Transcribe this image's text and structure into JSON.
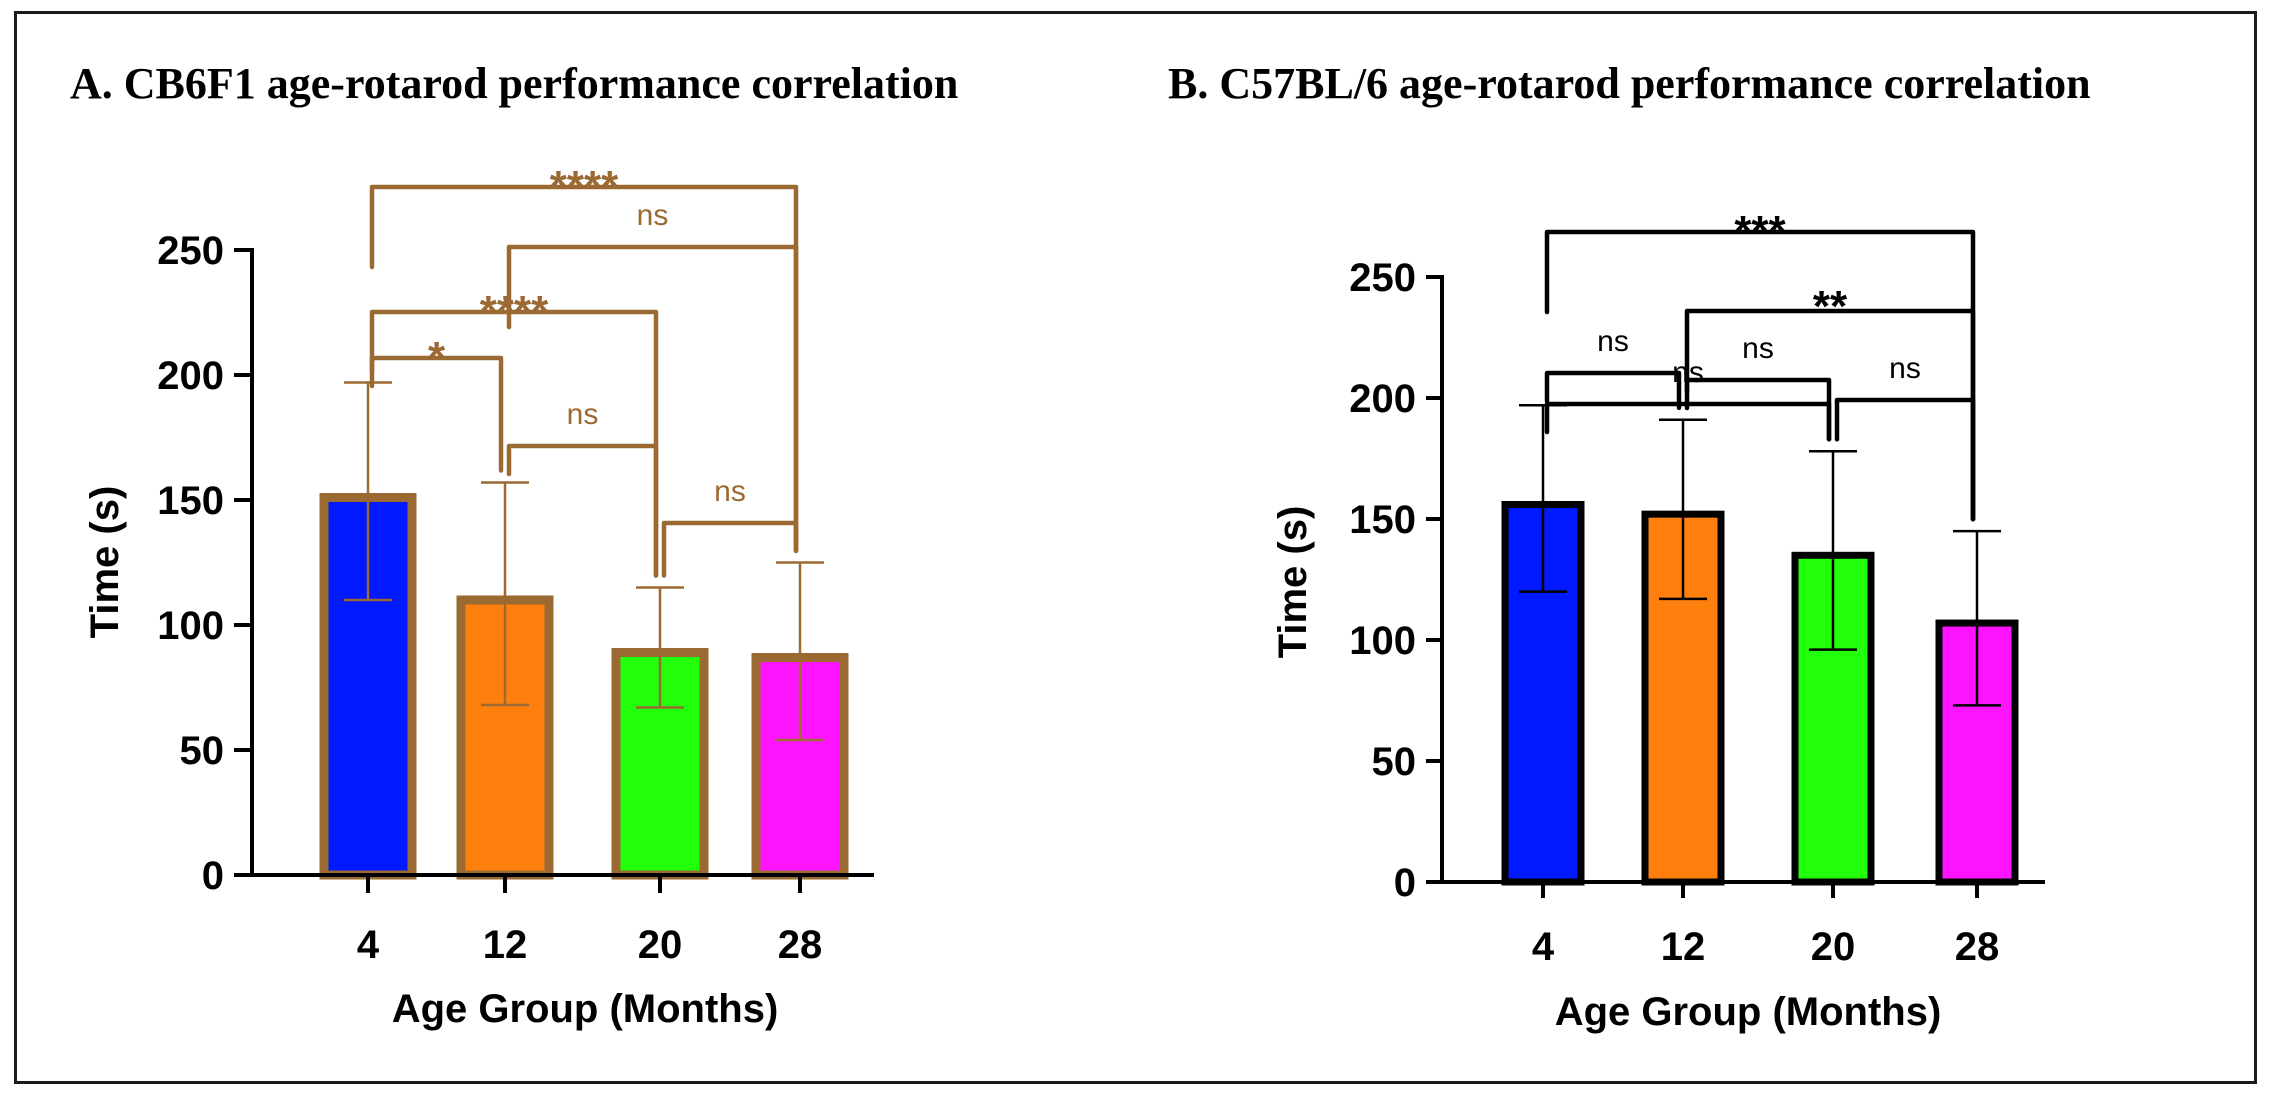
{
  "chart_data": [
    {
      "type": "bar",
      "title": "A. CB6F1 age-rotarod performance correlation",
      "xlabel": "Age Group (Months)",
      "ylabel": "Time (s)",
      "categories": [
        "4",
        "12",
        "20",
        "28"
      ],
      "values": [
        151,
        110,
        89,
        87
      ],
      "error_low": [
        110,
        68,
        67,
        54
      ],
      "error_high": [
        197,
        157,
        115,
        125
      ],
      "ylim": [
        0,
        250
      ],
      "yticks": [
        "0",
        "50",
        "100",
        "150",
        "200",
        "250"
      ],
      "bar_colors": [
        "#0019ff",
        "#ff7f0e",
        "#22ff0a",
        "#ff14ff"
      ],
      "edge_color": "#9b6a33",
      "annotation_color": "#9b6a33",
      "significance": [
        {
          "from": "4",
          "to": "12",
          "label": "*"
        },
        {
          "from": "4",
          "to": "20",
          "label": "****"
        },
        {
          "from": "12",
          "to": "20",
          "label": "ns"
        },
        {
          "from": "20",
          "to": "28",
          "label": "ns"
        },
        {
          "from": "12",
          "to": "28",
          "label": "ns"
        },
        {
          "from": "4",
          "to": "28",
          "label": "****"
        }
      ]
    },
    {
      "type": "bar",
      "title": "B. C57BL/6 age-rotarod performance correlation",
      "xlabel": "Age Group (Months)",
      "ylabel": "Time (s)",
      "categories": [
        "4",
        "12",
        "20",
        "28"
      ],
      "values": [
        156,
        152,
        135,
        107
      ],
      "error_low": [
        120,
        117,
        96,
        73
      ],
      "error_high": [
        197,
        191,
        178,
        145
      ],
      "ylim": [
        0,
        250
      ],
      "yticks": [
        "0",
        "50",
        "100",
        "150",
        "200",
        "250"
      ],
      "bar_colors": [
        "#0019ff",
        "#ff7f0e",
        "#22ff0a",
        "#ff14ff"
      ],
      "edge_color": "#000000",
      "annotation_color": "#000000",
      "significance": [
        {
          "from": "4",
          "to": "12",
          "label": "ns"
        },
        {
          "from": "12",
          "to": "20",
          "label": "ns"
        },
        {
          "from": "20",
          "to": "28",
          "label": "ns"
        },
        {
          "from": "4",
          "to": "20",
          "label": "ns"
        },
        {
          "from": "12",
          "to": "28",
          "label": "**"
        },
        {
          "from": "4",
          "to": "28",
          "label": "***"
        }
      ]
    }
  ]
}
